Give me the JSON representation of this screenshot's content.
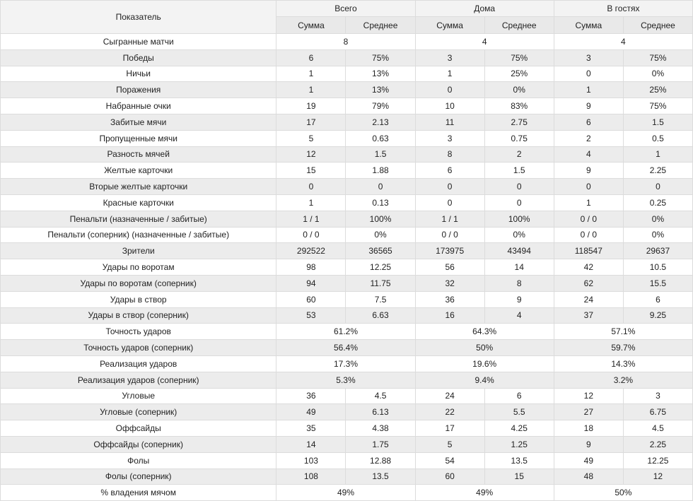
{
  "header": {
    "label": "Показатель",
    "groups": [
      "Всего",
      "Дома",
      "В гостях"
    ],
    "sub": [
      "Сумма",
      "Среднее"
    ]
  },
  "rows": [
    {
      "label": "Сыгранные матчи",
      "merged": [
        "8",
        "4",
        "4"
      ]
    },
    {
      "label": "Победы",
      "values": [
        "6",
        "75%",
        "3",
        "75%",
        "3",
        "75%"
      ]
    },
    {
      "label": "Ничьи",
      "values": [
        "1",
        "13%",
        "1",
        "25%",
        "0",
        "0%"
      ]
    },
    {
      "label": "Поражения",
      "values": [
        "1",
        "13%",
        "0",
        "0%",
        "1",
        "25%"
      ]
    },
    {
      "label": "Набранные очки",
      "values": [
        "19",
        "79%",
        "10",
        "83%",
        "9",
        "75%"
      ]
    },
    {
      "label": "Забитые мячи",
      "values": [
        "17",
        "2.13",
        "11",
        "2.75",
        "6",
        "1.5"
      ]
    },
    {
      "label": "Пропущенные мячи",
      "values": [
        "5",
        "0.63",
        "3",
        "0.75",
        "2",
        "0.5"
      ]
    },
    {
      "label": "Разность мячей",
      "values": [
        "12",
        "1.5",
        "8",
        "2",
        "4",
        "1"
      ]
    },
    {
      "label": "Желтые карточки",
      "values": [
        "15",
        "1.88",
        "6",
        "1.5",
        "9",
        "2.25"
      ]
    },
    {
      "label": "Вторые желтые карточки",
      "values": [
        "0",
        "0",
        "0",
        "0",
        "0",
        "0"
      ]
    },
    {
      "label": "Красные карточки",
      "values": [
        "1",
        "0.13",
        "0",
        "0",
        "1",
        "0.25"
      ]
    },
    {
      "label": "Пенальти (назначенные / забитые)",
      "values": [
        "1 / 1",
        "100%",
        "1 / 1",
        "100%",
        "0 / 0",
        "0%"
      ]
    },
    {
      "label": "Пенальти (соперник) (назначенные / забитые)",
      "values": [
        "0 / 0",
        "0%",
        "0 / 0",
        "0%",
        "0 / 0",
        "0%"
      ]
    },
    {
      "label": "Зрители",
      "values": [
        "292522",
        "36565",
        "173975",
        "43494",
        "118547",
        "29637"
      ]
    },
    {
      "label": "Удары по воротам",
      "values": [
        "98",
        "12.25",
        "56",
        "14",
        "42",
        "10.5"
      ]
    },
    {
      "label": "Удары по воротам (соперник)",
      "values": [
        "94",
        "11.75",
        "32",
        "8",
        "62",
        "15.5"
      ]
    },
    {
      "label": "Удары в створ",
      "values": [
        "60",
        "7.5",
        "36",
        "9",
        "24",
        "6"
      ]
    },
    {
      "label": "Удары в створ (соперник)",
      "values": [
        "53",
        "6.63",
        "16",
        "4",
        "37",
        "9.25"
      ]
    },
    {
      "label": "Точность ударов",
      "merged": [
        "61.2%",
        "64.3%",
        "57.1%"
      ]
    },
    {
      "label": "Точность ударов (соперник)",
      "merged": [
        "56.4%",
        "50%",
        "59.7%"
      ]
    },
    {
      "label": "Реализация ударов",
      "merged": [
        "17.3%",
        "19.6%",
        "14.3%"
      ]
    },
    {
      "label": "Реализация ударов (соперник)",
      "merged": [
        "5.3%",
        "9.4%",
        "3.2%"
      ]
    },
    {
      "label": "Угловые",
      "values": [
        "36",
        "4.5",
        "24",
        "6",
        "12",
        "3"
      ]
    },
    {
      "label": "Угловые (соперник)",
      "values": [
        "49",
        "6.13",
        "22",
        "5.5",
        "27",
        "6.75"
      ]
    },
    {
      "label": "Оффсайды",
      "values": [
        "35",
        "4.38",
        "17",
        "4.25",
        "18",
        "4.5"
      ]
    },
    {
      "label": "Оффсайды (соперник)",
      "values": [
        "14",
        "1.75",
        "5",
        "1.25",
        "9",
        "2.25"
      ]
    },
    {
      "label": "Фолы",
      "values": [
        "103",
        "12.88",
        "54",
        "13.5",
        "49",
        "12.25"
      ]
    },
    {
      "label": "Фолы (соперник)",
      "values": [
        "108",
        "13.5",
        "60",
        "15",
        "48",
        "12"
      ]
    },
    {
      "label": "% владения мячом",
      "merged": [
        "49%",
        "49%",
        "50%"
      ]
    }
  ]
}
